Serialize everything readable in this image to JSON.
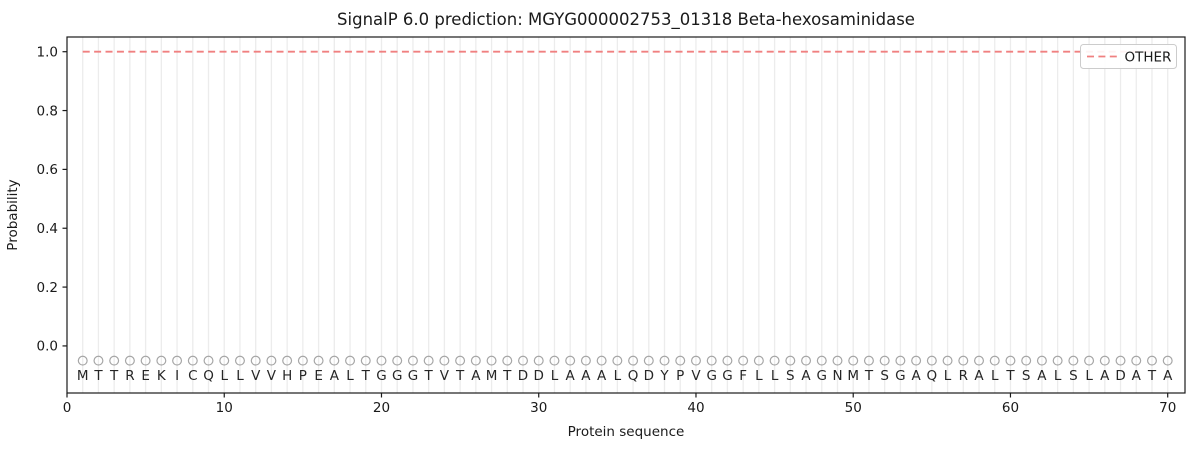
{
  "chart_data": {
    "type": "line",
    "title": "SignalP 6.0 prediction: MGYG000002753_01318 Beta-hexosaminidase",
    "xlabel": "Protein sequence",
    "ylabel": "Probability",
    "xlim": [
      0,
      71.1
    ],
    "ylim": [
      -0.16,
      1.05
    ],
    "xticks": [
      {
        "v": 0,
        "label": "0"
      },
      {
        "v": 10,
        "label": "10"
      },
      {
        "v": 20,
        "label": "20"
      },
      {
        "v": 30,
        "label": "30"
      },
      {
        "v": 40,
        "label": "40"
      },
      {
        "v": 50,
        "label": "50"
      },
      {
        "v": 60,
        "label": "60"
      },
      {
        "v": 70,
        "label": "70"
      }
    ],
    "yticks": [
      {
        "v": 0.0,
        "label": "0.0"
      },
      {
        "v": 0.2,
        "label": "0.2"
      },
      {
        "v": 0.4,
        "label": "0.4"
      },
      {
        "v": 0.6,
        "label": "0.6"
      },
      {
        "v": 0.8,
        "label": "0.8"
      },
      {
        "v": 1.0,
        "label": "1.0"
      }
    ],
    "grid": {
      "vertical_per_residue": true,
      "horizontal": false,
      "color": "#ececec"
    },
    "sequence": "MTTREKICQLLVVHPEALTGGGTVTAMTDDLAAALQDYPVGGFLLSAGNMTSGAQLRALTSALSLADATA",
    "series": [
      {
        "name": "OTHER",
        "color": "#f08080",
        "linestyle": "dashed",
        "x_start": 1,
        "x_end": 70,
        "y_constant": 1.0,
        "description": "OTHER probability is constant at 1.0 for all residues 1-70"
      }
    ],
    "residue_markers": {
      "symbol": "o",
      "y": -0.05,
      "color": "#a6a6a6"
    },
    "residue_letter_y": -0.098,
    "legend": {
      "position": "upper-right",
      "entries": [
        {
          "label": "OTHER",
          "color": "#f08080",
          "linestyle": "dashed"
        }
      ]
    },
    "colors": {
      "spine": "#1a1a1a",
      "grid": "#ececec",
      "marker": "#a6a6a6",
      "other_line": "#f08080"
    }
  }
}
